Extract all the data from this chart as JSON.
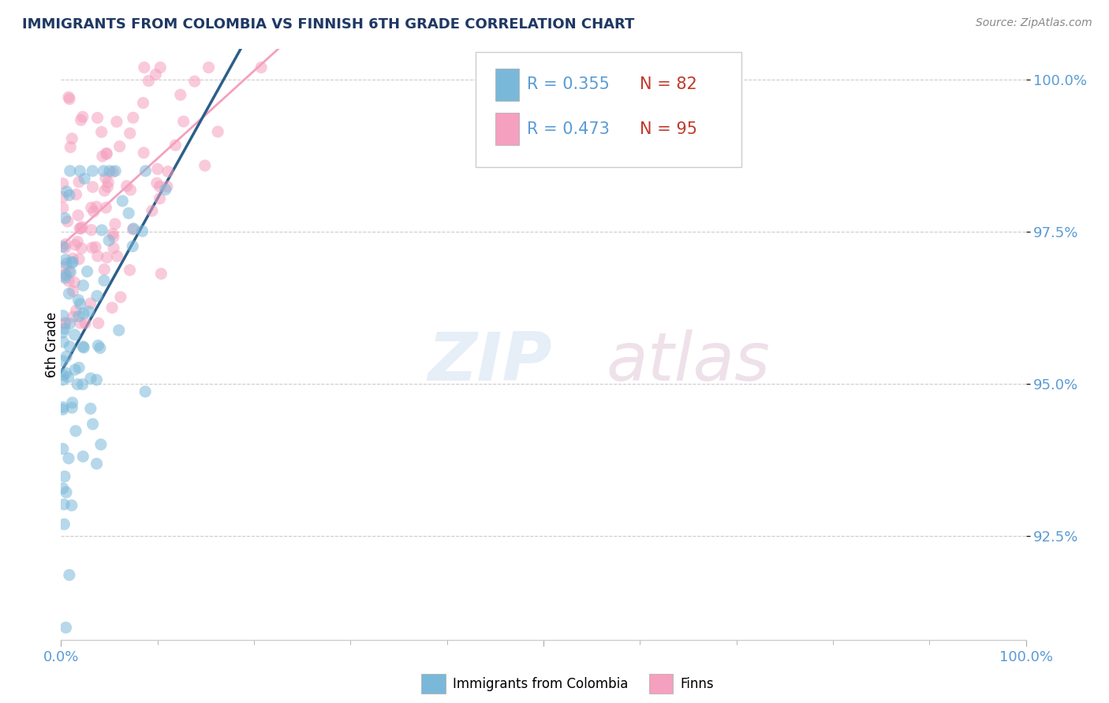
{
  "title": "IMMIGRANTS FROM COLOMBIA VS FINNISH 6TH GRADE CORRELATION CHART",
  "source": "Source: ZipAtlas.com",
  "ylabel": "6th Grade",
  "series1_label": "Immigrants from Colombia",
  "series2_label": "Finns",
  "series1_color": "#7ab8d9",
  "series2_color": "#f5a0be",
  "series1_R": 0.355,
  "series1_N": 82,
  "series2_R": 0.473,
  "series2_N": 95,
  "xlim": [
    0,
    1.0
  ],
  "ylim": [
    0.908,
    1.005
  ],
  "yticks": [
    0.925,
    0.95,
    0.975,
    1.0
  ],
  "ytick_labels": [
    "92.5%",
    "95.0%",
    "97.5%",
    "100.0%"
  ],
  "xtick_labels": [
    "0.0%",
    "100.0%"
  ],
  "watermark_zip": "ZIP",
  "watermark_atlas": "atlas",
  "seed": 42,
  "scatter_size": 120,
  "scatter_alpha": 0.55,
  "legend_R_color": "#5b9bd5",
  "legend_N_color": "#c0392b",
  "tick_color": "#5b9bd5",
  "title_color": "#1f3864"
}
